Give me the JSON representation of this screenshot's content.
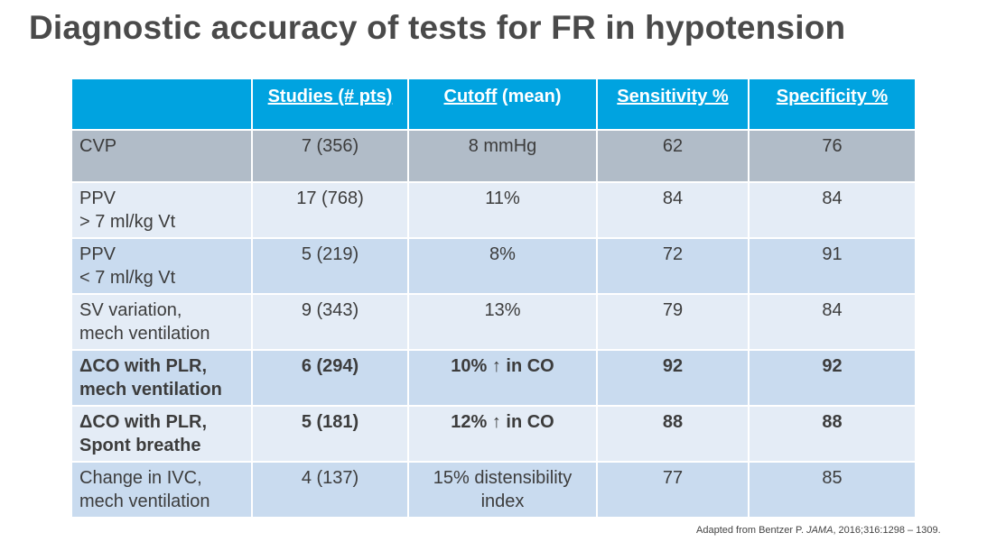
{
  "title": "Diagnostic accuracy of tests for FR in hypotension",
  "table": {
    "headers": {
      "studies": "Studies (# pts)",
      "cutoff_u": "Cutoff",
      "cutoff_rest": " (mean)",
      "sensitivity": "Sensitivity %",
      "specificity": "Specificity %"
    },
    "rows": [
      {
        "test_line1": "CVP",
        "test_line2": "",
        "studies": "7 (356)",
        "cutoff_line1": "8 mmHg",
        "cutoff_line2": "",
        "sensitivity": "62",
        "specificity": "76",
        "style": "grey",
        "bold": false
      },
      {
        "test_line1": "PPV",
        "test_line2": "> 7 ml/kg Vt",
        "studies": "17 (768)",
        "cutoff_line1": "11%",
        "cutoff_line2": "",
        "sensitivity": "84",
        "specificity": "84",
        "style": "light",
        "bold": false
      },
      {
        "test_line1": "PPV",
        "test_line2": "< 7 ml/kg Vt",
        "studies": "5 (219)",
        "cutoff_line1": "8%",
        "cutoff_line2": "",
        "sensitivity": "72",
        "specificity": "91",
        "style": "mid",
        "bold": false
      },
      {
        "test_line1": "SV variation,",
        "test_line2": "mech ventilation",
        "studies": "9 (343)",
        "cutoff_line1": "13%",
        "cutoff_line2": "",
        "sensitivity": "79",
        "specificity": "84",
        "style": "light",
        "bold": false
      },
      {
        "test_line1": "ΔCO with PLR,",
        "test_line2": "mech ventilation",
        "studies": "6 (294)",
        "cutoff_line1": "10% ↑ in CO",
        "cutoff_line2": "",
        "sensitivity": "92",
        "specificity": "92",
        "style": "mid",
        "bold": true
      },
      {
        "test_line1": "ΔCO with PLR,",
        "test_line2": "Spont breathe",
        "studies": "5 (181)",
        "cutoff_line1": "12% ↑ in CO",
        "cutoff_line2": "",
        "sensitivity": "88",
        "specificity": "88",
        "style": "light",
        "bold": true
      },
      {
        "test_line1": "Change in IVC,",
        "test_line2": "mech ventilation",
        "studies": "4 (137)",
        "cutoff_line1": "15% distensibility",
        "cutoff_line2": "index",
        "sensitivity": "77",
        "specificity": "85",
        "style": "mid",
        "bold": false
      }
    ]
  },
  "footnote": {
    "prefix": "Adapted from Bentzer P. ",
    "journal": "JAMA",
    "suffix": ", 2016;316:1298 – 1309."
  }
}
